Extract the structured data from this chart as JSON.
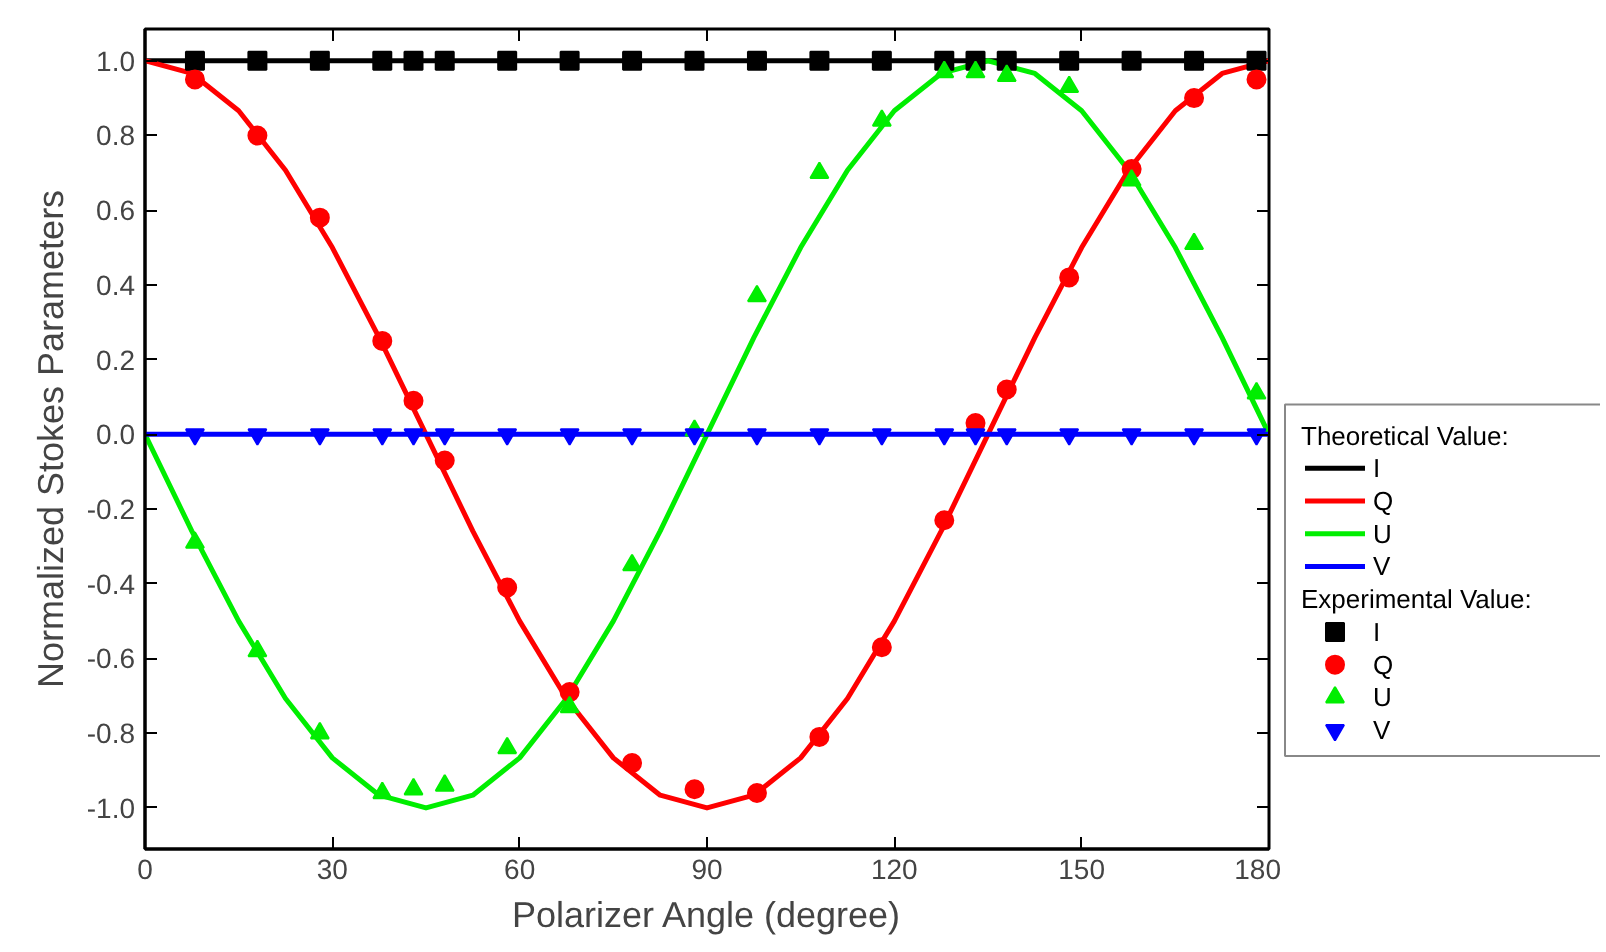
{
  "chart_data": {
    "type": "line",
    "xlabel": "Polarizer Angle (degree)",
    "ylabel": "Normalized Stokes Parameters",
    "xlim": [
      0,
      180
    ],
    "xticks": [
      0,
      30,
      60,
      90,
      120,
      150,
      180
    ],
    "ylim": [
      -1.11,
      1.085
    ],
    "yticks": [
      {
        "value": -1.0,
        "label": "-1.0"
      },
      {
        "value": -0.8,
        "label": "-0.8"
      },
      {
        "value": -0.6,
        "label": "-0.6"
      },
      {
        "value": -0.4,
        "label": "-0.4"
      },
      {
        "value": -0.2,
        "label": "-0.2"
      },
      {
        "value": 0,
        "label": "0.0"
      },
      {
        "value": 0.2,
        "label": "0.2"
      },
      {
        "value": 0.4,
        "label": "0.4"
      },
      {
        "value": 0.6,
        "label": "0.6"
      },
      {
        "value": 0.8,
        "label": "0.8"
      },
      {
        "value": 1.0,
        "label": "1.0"
      }
    ],
    "grid": false,
    "legend": "right",
    "annotations": [
      "Theoretical Value:",
      "Experimental Value:"
    ],
    "series": [
      {
        "name": "I",
        "color": "#000000",
        "marker": "none",
        "x": [
          0,
          180
        ],
        "values": [
          1,
          1
        ]
      },
      {
        "name": "Q",
        "color": "#ff0000",
        "marker": "none",
        "x": [
          0,
          7.5,
          15,
          22.5,
          30,
          37.5,
          45,
          52.5,
          60,
          67.5,
          75,
          82.5,
          90,
          97.5,
          105,
          112.5,
          120,
          127.5,
          135,
          142.5,
          150,
          157.5,
          165,
          172.5,
          180
        ],
        "values": [
          1,
          0.966,
          0.866,
          0.707,
          0.5,
          0.259,
          0,
          -0.259,
          -0.5,
          -0.707,
          -0.866,
          -0.966,
          -1,
          -0.966,
          -0.866,
          -0.707,
          -0.5,
          -0.259,
          0,
          0.259,
          0.5,
          0.707,
          0.866,
          0.966,
          1
        ]
      },
      {
        "name": "U",
        "color": "#00ee00",
        "marker": "none",
        "x": [
          0,
          7.5,
          15,
          22.5,
          30,
          37.5,
          45,
          52.5,
          60,
          67.5,
          75,
          82.5,
          90,
          97.5,
          105,
          112.5,
          120,
          127.5,
          135,
          142.5,
          150,
          157.5,
          165,
          172.5,
          180
        ],
        "values": [
          0,
          -0.259,
          -0.5,
          -0.707,
          -0.866,
          -0.966,
          -1,
          -0.966,
          -0.866,
          -0.707,
          -0.5,
          -0.259,
          0,
          0.259,
          0.5,
          0.707,
          0.866,
          0.966,
          1,
          0.966,
          0.866,
          0.707,
          0.5,
          0.259,
          0
        ]
      },
      {
        "name": "V",
        "color": "#0000ff",
        "marker": "none",
        "x": [
          0,
          180
        ],
        "values": [
          0,
          0
        ]
      },
      {
        "name": "I",
        "type": "scatter",
        "color": "#000000",
        "marker": "square",
        "x": [
          8,
          18,
          28,
          38,
          43,
          48,
          58,
          68,
          78,
          88,
          98,
          108,
          118,
          128,
          133,
          138,
          148,
          158,
          168,
          178
        ],
        "values": [
          1,
          1,
          1,
          1,
          1,
          1,
          1,
          1,
          1,
          1,
          1,
          1,
          1,
          1,
          1,
          1,
          1,
          1,
          1,
          1
        ]
      },
      {
        "name": "Q",
        "type": "scatter",
        "color": "#ff0000",
        "marker": "circle",
        "x": [
          8,
          18,
          28,
          38,
          43,
          48,
          58,
          68,
          78,
          88,
          98,
          108,
          118,
          128,
          133,
          138,
          148,
          158,
          168,
          178
        ],
        "values": [
          0.95,
          0.8,
          0.58,
          0.25,
          0.09,
          -0.07,
          -0.41,
          -0.69,
          -0.88,
          -0.95,
          -0.96,
          -0.81,
          -0.57,
          -0.23,
          0.03,
          0.12,
          0.42,
          0.71,
          0.9,
          0.95
        ]
      },
      {
        "name": "U",
        "type": "scatter",
        "color": "#00ee00",
        "marker": "triangle",
        "x": [
          8,
          18,
          28,
          38,
          43,
          48,
          58,
          68,
          78,
          88,
          98,
          108,
          118,
          128,
          133,
          138,
          148,
          158,
          168,
          178
        ],
        "values": [
          -0.29,
          -0.58,
          -0.8,
          -0.96,
          -0.95,
          -0.94,
          -0.84,
          -0.73,
          -0.35,
          0.01,
          0.37,
          0.7,
          0.84,
          0.97,
          0.97,
          0.96,
          0.93,
          0.68,
          0.51,
          0.11
        ]
      },
      {
        "name": "V",
        "type": "scatter",
        "color": "#0000ff",
        "marker": "triangle",
        "x": [
          8,
          18,
          28,
          38,
          43,
          48,
          58,
          68,
          78,
          88,
          98,
          108,
          118,
          128,
          133,
          138,
          148,
          158,
          168,
          178
        ],
        "values": [
          0,
          0,
          0,
          0,
          0,
          0,
          0,
          0,
          0,
          0,
          0,
          0,
          0,
          0,
          0,
          0,
          0,
          0,
          0,
          0
        ]
      }
    ]
  }
}
